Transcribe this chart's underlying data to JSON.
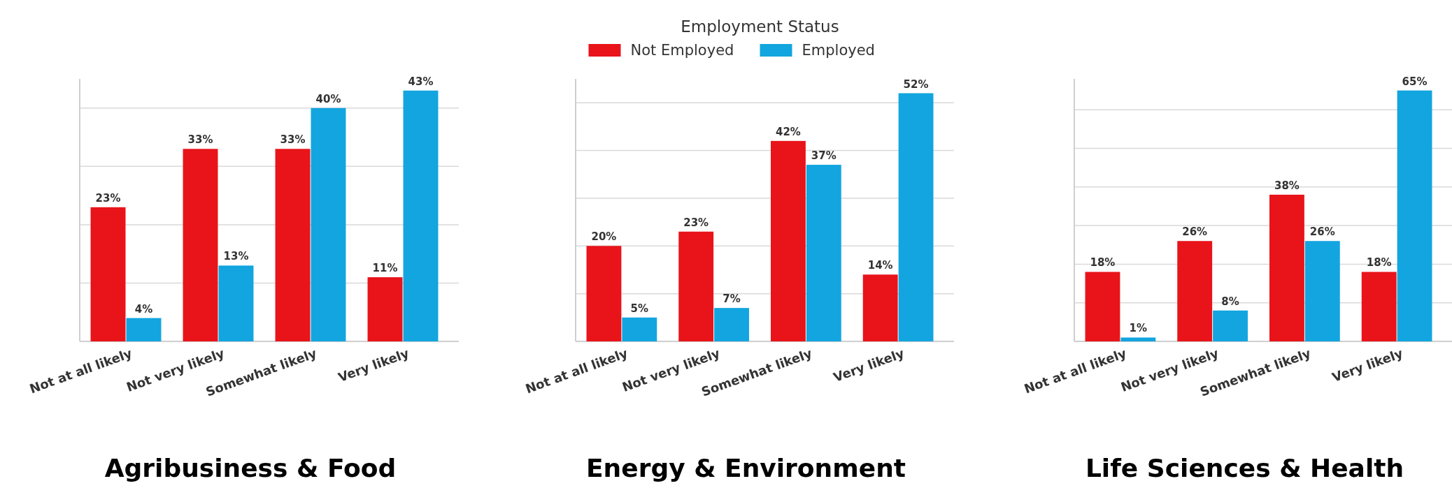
{
  "chart_data": [
    {
      "type": "bar",
      "title": "Agribusiness & Food",
      "categories": [
        "Not at all likely",
        "Not very likely",
        "Somewhat likely",
        "Very likely"
      ],
      "series": [
        {
          "color": "#e8141a",
          "values": [
            23,
            33,
            33,
            11
          ],
          "value_labels": [
            "23%",
            "33%",
            "33%",
            "11%"
          ]
        },
        {
          "color": "#12a5df",
          "values": [
            4,
            13,
            40,
            43
          ],
          "value_labels": [
            "4%",
            "13%",
            "40%",
            "43%"
          ]
        }
      ],
      "ylim": [
        0,
        45
      ],
      "yticks": [
        {
          "value": 0,
          "label": null
        },
        {
          "value": 10,
          "label": null
        },
        {
          "value": 20,
          "label": null
        },
        {
          "value": 30,
          "label": null
        },
        {
          "value": 40,
          "label": null
        }
      ],
      "grid": "y",
      "tick_labels": "x",
      "legend": false
    },
    {
      "type": "bar",
      "title": "Energy & Environment",
      "legend_title": "Employment Status",
      "categories": [
        "Not at all likely",
        "Not very likely",
        "Somewhat likely",
        "Very likely"
      ],
      "series": [
        {
          "name": "Not Employed",
          "color": "#e8141a",
          "values": [
            20,
            23,
            42,
            14
          ],
          "value_labels": [
            "20%",
            "23%",
            "42%",
            "14%"
          ]
        },
        {
          "name": "Employed",
          "color": "#12a5df",
          "values": [
            5,
            7,
            37,
            52
          ],
          "value_labels": [
            "5%",
            "7%",
            "37%",
            "52%"
          ]
        }
      ],
      "ylim": [
        0,
        55
      ],
      "yticks": [
        {
          "value": 0,
          "label": null
        },
        {
          "value": 10,
          "label": null
        },
        {
          "value": 20,
          "label": null
        },
        {
          "value": 30,
          "label": null
        },
        {
          "value": 40,
          "label": null
        },
        {
          "value": 50,
          "label": null
        }
      ],
      "grid": "y",
      "tick_labels": "x",
      "legend": "top"
    },
    {
      "type": "bar",
      "title": "Life Sciences & Health",
      "categories": [
        "Not at all likely",
        "Not very likely",
        "Somewhat likely",
        "Very likely"
      ],
      "series": [
        {
          "color": "#e8141a",
          "values": [
            18,
            26,
            38,
            18
          ],
          "value_labels": [
            "18%",
            "26%",
            "38%",
            "18%"
          ]
        },
        {
          "color": "#12a5df",
          "values": [
            1,
            8,
            26,
            65
          ],
          "value_labels": [
            "1%",
            "8%",
            "26%",
            "65%"
          ]
        }
      ],
      "ylim": [
        0,
        68
      ],
      "yticks": [
        {
          "value": 0,
          "label": null
        },
        {
          "value": 10,
          "label": null
        },
        {
          "value": 20,
          "label": null
        },
        {
          "value": 30,
          "label": null
        },
        {
          "value": 40,
          "label": null
        },
        {
          "value": 50,
          "label": null
        },
        {
          "value": 60,
          "label": null
        }
      ],
      "grid": "y",
      "tick_labels": "x",
      "legend": false
    }
  ]
}
